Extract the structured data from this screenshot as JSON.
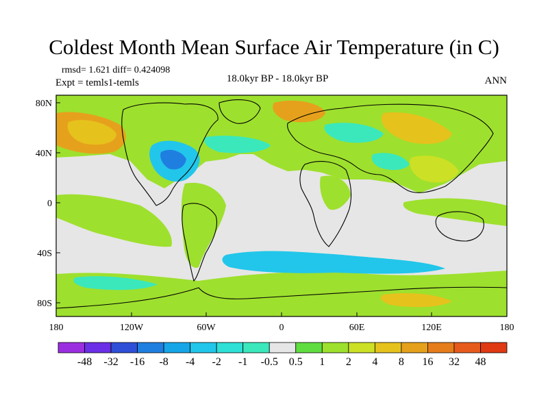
{
  "title": "Coldest Month Mean Surface Air Temperature (in C)",
  "stats_line": "rmsd= 1.621 diff= 0.424098",
  "experiment_line": "Expt = temls1-temls",
  "period_label": "18.0kyr BP - 18.0kyr BP",
  "season_label": "ANN",
  "lat_ticks": [
    "80N",
    "40N",
    "0",
    "40S",
    "80S"
  ],
  "lon_ticks": [
    "180",
    "120W",
    "60W",
    "0",
    "60E",
    "120E",
    "180"
  ],
  "colorbar": {
    "labels": [
      "-48",
      "-32",
      "-16",
      "-8",
      "-4",
      "-2",
      "-1",
      "-0.5",
      "0.5",
      "1",
      "2",
      "4",
      "8",
      "16",
      "32",
      "48"
    ],
    "colors": [
      "#9b2fe0",
      "#6a2fe6",
      "#2f4fd8",
      "#1f7fe0",
      "#16a6e8",
      "#22c6ea",
      "#2ee0d6",
      "#3ae8bc",
      "#e6e6e6",
      "#60dd40",
      "#9ee02e",
      "#cce025",
      "#e6c21c",
      "#e6a11c",
      "#e67d1c",
      "#e65a1c",
      "#e03a14"
    ]
  },
  "map_colors": {
    "neutral": "#e6e6e6",
    "light_green": "#9ee02e",
    "green": "#60dd40",
    "yellow_green": "#cce025",
    "yellow": "#e6c21c",
    "orange": "#e6a11c",
    "cyan": "#22c6ea",
    "light_cyan": "#3ae8bc",
    "blue": "#1f7fe0",
    "coast": "#000000"
  }
}
